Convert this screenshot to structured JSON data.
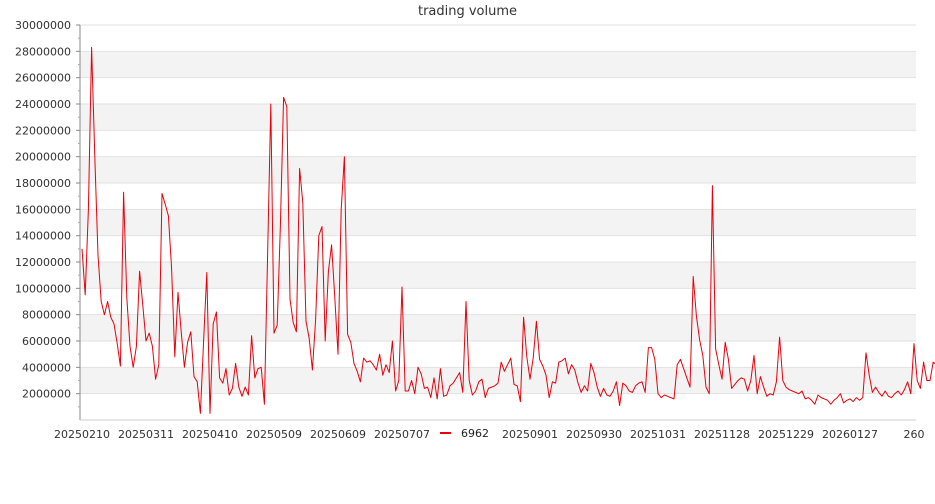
{
  "chart_data": {
    "type": "line",
    "title": "trading volume",
    "xlabel": "",
    "ylabel": "",
    "ylim": [
      0,
      30000000
    ],
    "yticks": [
      2000000,
      4000000,
      6000000,
      8000000,
      10000000,
      12000000,
      14000000,
      16000000,
      18000000,
      20000000,
      22000000,
      24000000,
      26000000,
      28000000,
      30000000
    ],
    "ytick_labels": [
      "2000000",
      "4000000",
      "6000000",
      "8000000",
      "10000000",
      "12000000",
      "14000000",
      "16000000",
      "18000000",
      "20000000",
      "22000000",
      "24000000",
      "26000000",
      "28000000",
      "30000000"
    ],
    "x_tick_labels": [
      "20250210",
      "20250311",
      "20250410",
      "20250509",
      "20250609",
      "20250707",
      "20250901",
      "20250930",
      "20251031",
      "20251128",
      "20251229",
      "20260127",
      "260"
    ],
    "x_tick_index": [
      0,
      20,
      40,
      60,
      80,
      100,
      140,
      160,
      180,
      200,
      220,
      240,
      260
    ],
    "x_range": [
      0,
      260
    ],
    "grid": true,
    "alternating_bands": true,
    "legend_position": "bottom-center",
    "series": [
      {
        "name": "6962",
        "color": "#e8000b",
        "values": [
          13000000,
          9500000,
          16000000,
          28300000,
          20000000,
          12500000,
          9000000,
          8000000,
          9000000,
          7800000,
          7300000,
          5800000,
          4100000,
          17300000,
          9300000,
          5600000,
          4000000,
          5600000,
          11300000,
          8700000,
          6000000,
          6600000,
          5600000,
          3100000,
          4200000,
          17200000,
          16400000,
          15500000,
          11500000,
          4800000,
          9700000,
          6700000,
          4000000,
          5900000,
          6700000,
          3300000,
          2900000,
          500000,
          6000000,
          11200000,
          500000,
          7300000,
          8200000,
          3200000,
          2800000,
          3900000,
          1900000,
          2400000,
          4300000,
          2500000,
          1800000,
          2500000,
          1900000,
          6400000,
          3200000,
          3900000,
          4000000,
          1200000,
          12500000,
          24000000,
          6600000,
          7200000,
          14800000,
          24500000,
          23800000,
          9200000,
          7400000,
          6700000,
          19100000,
          16500000,
          7500000,
          6200000,
          3800000,
          7600000,
          14000000,
          14700000,
          6000000,
          11300000,
          13300000,
          9300000,
          5000000,
          16000000,
          20000000,
          6500000,
          5900000,
          4300000,
          3700000,
          2900000,
          4700000,
          4400000,
          4500000,
          4200000,
          3800000,
          5000000,
          3400000,
          4200000,
          3600000,
          6000000,
          2200000,
          3000000,
          10100000,
          2200000,
          2200000,
          3000000,
          2000000,
          4000000,
          3500000,
          2400000,
          2500000,
          1700000,
          3200000,
          1600000,
          3900000,
          1800000,
          1900000,
          2600000,
          2800000,
          3200000,
          3600000,
          2100000,
          9000000,
          3000000,
          1900000,
          2200000,
          2900000,
          3100000,
          1700000,
          2400000,
          2500000,
          2600000,
          2800000,
          4400000,
          3700000,
          4200000,
          4700000,
          2700000,
          2600000,
          1400000,
          7800000,
          4800000,
          3100000,
          4700000,
          7500000,
          4600000,
          4100000,
          3400000,
          1700000,
          2900000,
          2800000,
          4400000,
          4500000,
          4700000,
          3500000,
          4200000,
          3800000,
          2800000,
          2100000,
          2600000,
          2200000,
          4300000,
          3600000,
          2500000,
          1800000,
          2400000,
          1900000,
          1800000,
          2200000,
          2900000,
          1100000,
          2800000,
          2600000,
          2200000,
          2100000,
          2600000,
          2800000,
          2900000,
          2100000,
          5500000,
          5500000,
          4600000,
          2000000,
          1700000,
          1900000,
          1800000,
          1700000,
          1600000,
          4200000,
          4600000,
          3900000,
          3200000,
          2500000,
          10900000,
          7900000,
          6100000,
          4900000,
          2500000,
          2000000,
          17800000,
          5400000,
          4200000,
          3100000,
          5900000,
          4600000,
          2400000,
          2700000,
          3000000,
          3200000,
          3100000,
          2200000,
          3000000,
          4900000,
          2000000,
          3300000,
          2500000,
          1800000,
          2000000,
          1900000,
          2900000,
          6300000,
          3000000,
          2500000,
          2300000,
          2200000,
          2100000,
          2000000,
          2200000,
          1600000,
          1700000,
          1500000,
          1200000,
          1900000,
          1700000,
          1600000,
          1500000,
          1200000,
          1500000,
          1700000,
          2000000,
          1300000,
          1500000,
          1600000,
          1400000,
          1700000,
          1500000,
          1700000,
          5100000,
          3400000,
          2100000,
          2500000,
          2100000,
          1800000,
          2200000,
          1800000,
          1700000,
          2000000,
          2200000,
          1900000,
          2300000,
          2900000,
          2000000,
          5800000,
          3000000,
          2400000,
          4400000,
          3000000,
          3000000,
          4400000,
          4200000,
          2500000,
          2200000,
          1100000,
          1600000,
          2800000,
          2400000,
          3600000
        ]
      }
    ]
  }
}
